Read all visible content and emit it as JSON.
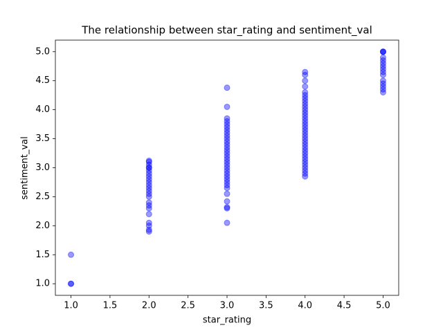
{
  "chart_data": {
    "type": "scatter",
    "title": "The relationship between star_rating and sentiment_val",
    "x_label": "star_rating",
    "y_label": "sentiment_val",
    "color": "#0000ff",
    "grid": false,
    "xlim": [
      0.8,
      5.2
    ],
    "ylim": [
      0.8,
      5.2
    ],
    "xticks": [
      {
        "value": 1,
        "label": "1.0"
      },
      1.5,
      {
        "value": 2,
        "label": "2.0"
      },
      2.5,
      {
        "value": 3,
        "label": "3.0"
      },
      3.5,
      {
        "value": 4,
        "label": "4.0"
      },
      4.5,
      {
        "value": 5,
        "label": "5.0"
      }
    ],
    "yticks": [
      {
        "value": 1,
        "label": "1.0"
      },
      1.5,
      {
        "value": 2,
        "label": "2.0"
      },
      2.5,
      {
        "value": 3,
        "label": "3.0"
      },
      3.5,
      {
        "value": 4,
        "label": "4.0"
      },
      4.5,
      {
        "value": 5,
        "label": "5.0"
      }
    ],
    "x": [
      1,
      1,
      1,
      2,
      2,
      2,
      2,
      2,
      2,
      2,
      2,
      2,
      2,
      2,
      2,
      2,
      2,
      2,
      2,
      2,
      2,
      2,
      2,
      2,
      2,
      2,
      3,
      3,
      3,
      3,
      3,
      3,
      3,
      3,
      3,
      3,
      3,
      3,
      3,
      3,
      3,
      3,
      3,
      3,
      3,
      3,
      3,
      3,
      3,
      3,
      3,
      3,
      3,
      3,
      3,
      3,
      3,
      3,
      4,
      4,
      4,
      4,
      4,
      4,
      4,
      4,
      4,
      4,
      4,
      4,
      4,
      4,
      4,
      4,
      4,
      4,
      4,
      4,
      4,
      4,
      4,
      4,
      4,
      4,
      4,
      4,
      4,
      4,
      4,
      4,
      4,
      4,
      5,
      5,
      5,
      5,
      5,
      5,
      5,
      5,
      5,
      5,
      5,
      5,
      5,
      5,
      5
    ],
    "y": [
      1.0,
      1.0,
      1.5,
      1.9,
      1.93,
      2.0,
      2.05,
      2.2,
      2.3,
      2.35,
      2.4,
      2.5,
      2.55,
      2.6,
      2.65,
      2.7,
      2.75,
      2.8,
      2.85,
      2.9,
      2.95,
      3.0,
      3.0,
      3.05,
      3.1,
      3.12,
      2.05,
      2.3,
      2.32,
      2.42,
      2.55,
      2.65,
      2.7,
      2.75,
      2.8,
      2.85,
      2.9,
      2.95,
      3.0,
      3.05,
      3.1,
      3.15,
      3.2,
      3.25,
      3.3,
      3.35,
      3.4,
      3.45,
      3.5,
      3.55,
      3.6,
      3.65,
      3.7,
      3.75,
      3.8,
      3.85,
      4.05,
      4.38,
      2.85,
      2.9,
      2.95,
      3.0,
      3.05,
      3.1,
      3.15,
      3.2,
      3.25,
      3.3,
      3.35,
      3.4,
      3.45,
      3.5,
      3.55,
      3.6,
      3.65,
      3.7,
      3.75,
      3.8,
      3.85,
      3.9,
      3.95,
      4.0,
      4.05,
      4.1,
      4.15,
      4.2,
      4.25,
      4.3,
      4.4,
      4.5,
      4.6,
      4.65,
      4.3,
      4.35,
      4.4,
      4.45,
      4.5,
      4.6,
      4.65,
      4.7,
      4.75,
      4.8,
      4.85,
      4.9,
      5.0,
      5.0,
      5.0
    ]
  }
}
